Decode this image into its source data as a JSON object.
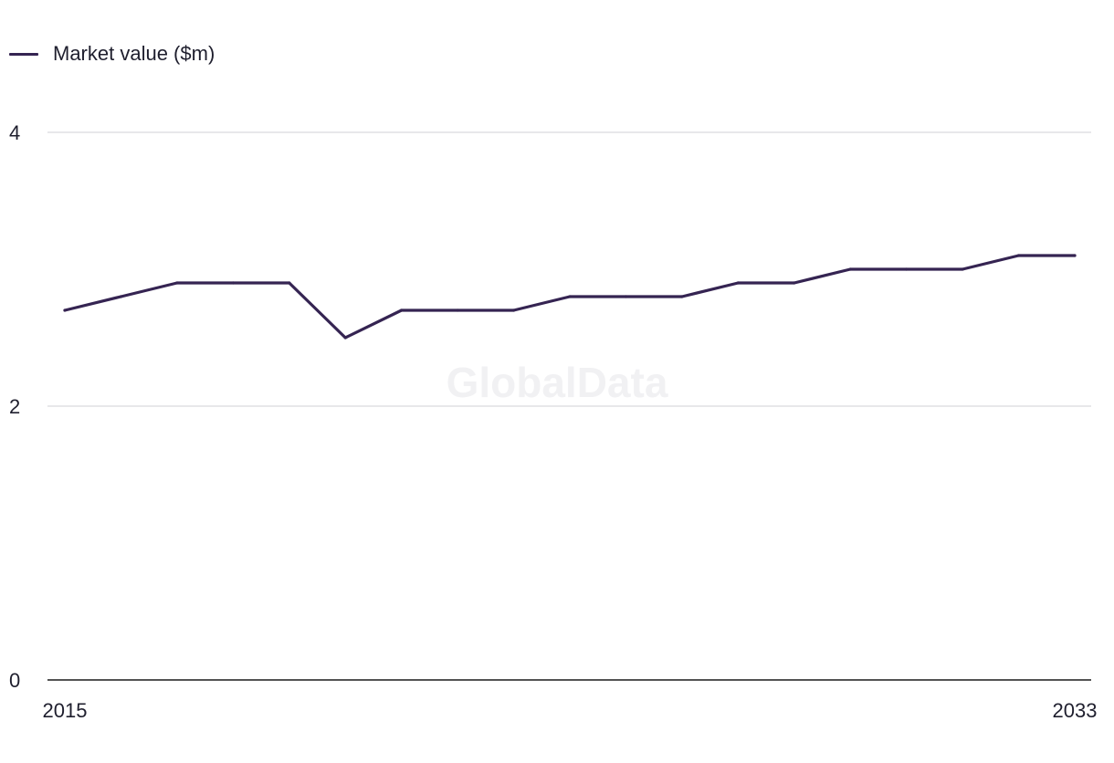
{
  "watermark": "GlobalData",
  "colors": {
    "series": "#352452",
    "grid": "#d9d9de",
    "axis": "#1a1a1a",
    "text": "#1f1f2e",
    "watermark": "#f1f1f3"
  },
  "chart_data": {
    "type": "line",
    "title": "",
    "xlabel": "",
    "ylabel": "",
    "x": [
      2015,
      2016,
      2017,
      2018,
      2019,
      2020,
      2021,
      2022,
      2023,
      2024,
      2025,
      2026,
      2027,
      2028,
      2029,
      2030,
      2031,
      2032,
      2033
    ],
    "series": [
      {
        "name": "Market value ($m)",
        "values": [
          2.7,
          2.8,
          2.9,
          2.9,
          2.9,
          2.5,
          2.7,
          2.7,
          2.7,
          2.8,
          2.8,
          2.8,
          2.9,
          2.9,
          3.0,
          3.0,
          3.0,
          3.1,
          3.1
        ]
      }
    ],
    "xticks": [
      "2015",
      "2033"
    ],
    "yticks": [
      "0",
      "2",
      "4"
    ],
    "ylim": [
      0,
      4
    ],
    "xlim": [
      2015,
      2033
    ],
    "grid": true,
    "legend": "top-left"
  }
}
